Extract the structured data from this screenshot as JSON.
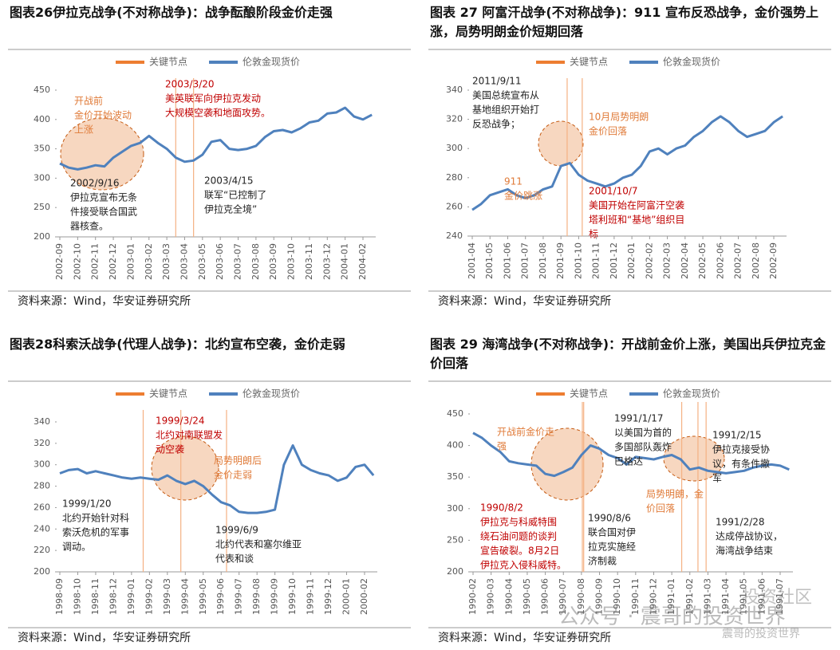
{
  "chart_data": [
    {
      "type": "line",
      "title": "图表26伊拉克战争(不对称战争)：战争酝酿阶段金价走强",
      "categories": [
        "2002-09",
        null,
        "2002-10",
        null,
        "2002-11",
        null,
        "2002-12",
        null,
        "2003-01",
        null,
        "2003-02",
        null,
        "2003-03",
        null,
        "2003-04",
        null,
        "2003-05",
        null,
        "2003-06",
        null,
        "2003-07",
        null,
        "2003-08",
        null,
        "2003-09",
        null,
        "2003-10",
        null,
        "2003-11",
        null,
        "2003-12",
        null,
        "2004-01",
        null,
        "2004-02",
        null
      ],
      "series": [
        {
          "name": "伦敦金现货价",
          "color": "#4f81bd",
          "values": [
            325,
            318,
            315,
            318,
            322,
            320,
            335,
            345,
            355,
            360,
            372,
            360,
            350,
            335,
            328,
            330,
            340,
            362,
            365,
            350,
            348,
            350,
            355,
            370,
            380,
            382,
            378,
            385,
            395,
            398,
            410,
            412,
            420,
            405,
            400,
            408
          ]
        }
      ],
      "key_nodes": {
        "name": "关键节点",
        "color": "#ed7d31",
        "x": [
          13,
          15
        ]
      },
      "ylim": [
        200,
        450
      ],
      "yticks": [
        200,
        250,
        300,
        350,
        400,
        450
      ],
      "annotations": [
        {
          "lines": [
            "开战前",
            "金价开始波动",
            "上涨"
          ],
          "color": "#e07b39"
        },
        {
          "lines": [
            "2003/3/20",
            "美英联军向伊拉克发动",
            "大规模空袭和地面攻势。"
          ],
          "color": "#c00000"
        },
        {
          "lines": [
            "2002/9/16",
            "伊拉克宣布无条",
            "件接受联合国武",
            "器核查。"
          ],
          "color": "#222222"
        },
        {
          "lines": [
            "2003/4/15",
            "联军“已控制了",
            "伊拉克全境”"
          ],
          "color": "#222222"
        }
      ],
      "source": "资料来源：Wind，华安证券研究所"
    },
    {
      "type": "line",
      "title": "图表 27 阿富汗战争(不对称战争)：911 宣布反恐战争，金价强势上涨，局势明朗金价短期回落",
      "categories": [
        "2001-04",
        null,
        "2001-05",
        null,
        "2001-06",
        null,
        "2001-07",
        null,
        "2001-08",
        null,
        "2001-09",
        null,
        "2001-10",
        null,
        "2001-11",
        null,
        "2001-12",
        null,
        "2002-01",
        null,
        "2002-02",
        null,
        "2002-03",
        null,
        "2002-04",
        null,
        "2002-05",
        null,
        "2002-06",
        null,
        "2002-07",
        null,
        "2002-08",
        null,
        "2002-09",
        null
      ],
      "series": [
        {
          "name": "伦敦金现货价",
          "color": "#4f81bd",
          "values": [
            258,
            262,
            268,
            270,
            272,
            268,
            266,
            268,
            272,
            274,
            288,
            290,
            282,
            278,
            276,
            274,
            276,
            280,
            282,
            288,
            298,
            300,
            296,
            300,
            302,
            308,
            312,
            318,
            322,
            318,
            312,
            308,
            310,
            312,
            318,
            322
          ]
        }
      ],
      "key_nodes": {
        "name": "关键节点",
        "color": "#ed7d31",
        "x": [
          10.7,
          12.4
        ]
      },
      "ylim": [
        240,
        340
      ],
      "yticks": [
        240,
        260,
        280,
        300,
        320,
        340
      ],
      "annotations": [
        {
          "lines": [
            "2011/9/11",
            "美国总统宣布从",
            "基地组织开始打",
            "反恐战争；"
          ],
          "color": "#222222"
        },
        {
          "lines": [
            "10月局势明朗",
            "金价回落"
          ],
          "color": "#e07b39"
        },
        {
          "lines": [
            "911",
            "金价跳涨"
          ],
          "color": "#e07b39"
        },
        {
          "lines": [
            "2001/10/7",
            "美国开始在阿富汗空袭",
            "塔利班和“基地”组织目",
            "标"
          ],
          "color": "#c00000"
        }
      ],
      "source": "资料来源：Wind，华安证券研究所"
    },
    {
      "type": "line",
      "title": "图表28科索沃战争(代理人战争)：北约宣布空袭，金价走弱",
      "categories": [
        "1998-09",
        null,
        "1998-10",
        null,
        "1998-11",
        null,
        "1998-12",
        null,
        "1999-01",
        null,
        "1999-02",
        null,
        "1999-03",
        null,
        "1999-04",
        null,
        "1999-05",
        null,
        "1999-06",
        null,
        "1999-07",
        null,
        "1999-08",
        null,
        "1999-09",
        null,
        "1999-10",
        null,
        "1999-11",
        null,
        "1999-12",
        null,
        "2000-01",
        null,
        "2000-02",
        null
      ],
      "series": [
        {
          "name": "伦敦金现货价",
          "color": "#4f81bd",
          "values": [
            292,
            295,
            296,
            292,
            294,
            292,
            290,
            288,
            287,
            288,
            287,
            286,
            290,
            285,
            282,
            285,
            280,
            272,
            265,
            262,
            256,
            255,
            255,
            256,
            258,
            300,
            318,
            300,
            295,
            292,
            290,
            285,
            288,
            298,
            300,
            290
          ]
        }
      ],
      "key_nodes": {
        "name": "关键节点",
        "color": "#ed7d31",
        "x": [
          9.3,
          13.5,
          18.6
        ]
      },
      "ylim": [
        200,
        340
      ],
      "yticks": [
        200,
        220,
        240,
        260,
        280,
        300,
        320,
        340
      ],
      "annotations": [
        {
          "lines": [
            "1999/3/24",
            "北约对南联盟发",
            "动空袭"
          ],
          "color": "#c00000"
        },
        {
          "lines": [
            "局势明朗后",
            "金价走弱"
          ],
          "color": "#e07b39"
        },
        {
          "lines": [
            "1999/1/20",
            "北约开始针对科",
            "索沃危机的军事",
            "调动。"
          ],
          "color": "#222222"
        },
        {
          "lines": [
            "1999/6/9",
            "北约代表和塞尔维亚",
            "代表和谈"
          ],
          "color": "#222222"
        }
      ],
      "source": "资料来源：Wind，华安证券研究所"
    },
    {
      "type": "line",
      "title": "图表 29 海湾战争(不对称战争)：开战前金价上涨，美国出兵伊拉克金价回落",
      "categories": [
        "1990-02",
        null,
        "1990-03",
        null,
        "1990-04",
        null,
        "1990-05",
        null,
        "1990-06",
        null,
        "1990-07",
        null,
        "1990-08",
        null,
        "1990-09",
        null,
        "1990-10",
        null,
        "1990-11",
        null,
        "1990-12",
        null,
        "1991-01",
        null,
        "1991-02",
        null,
        "1991-03",
        null,
        "1991-04",
        null,
        "1991-05",
        null,
        "1991-06",
        null,
        "1991-07",
        null
      ],
      "series": [
        {
          "name": "伦敦金现货价",
          "color": "#4f81bd",
          "values": [
            420,
            412,
            400,
            390,
            375,
            372,
            370,
            368,
            355,
            352,
            358,
            365,
            385,
            400,
            395,
            385,
            380,
            370,
            382,
            380,
            378,
            382,
            385,
            378,
            362,
            365,
            360,
            358,
            356,
            358,
            360,
            365,
            368,
            370,
            368,
            362
          ]
        }
      ],
      "key_nodes": {
        "name": "关键节点",
        "color": "#ed7d31",
        "x": [
          12.1,
          12.25,
          23.1,
          24.9,
          25.8
        ]
      },
      "ylim": [
        200,
        450
      ],
      "yticks": [
        200,
        250,
        300,
        350,
        400,
        450
      ],
      "annotations": [
        {
          "lines": [
            "开战前金价走",
            "强"
          ],
          "color": "#e07b39"
        },
        {
          "lines": [
            "1991/1/17",
            "以美国为首的",
            "多国部队轰炸",
            "巴格达"
          ],
          "color": "#222222"
        },
        {
          "lines": [
            "1991/2/15",
            "伊拉克接受协",
            "议，有条件撤",
            "军"
          ],
          "color": "#222222"
        },
        {
          "lines": [
            "局势明朗，金",
            "价回落"
          ],
          "color": "#e07b39"
        },
        {
          "lines": [
            "1990/8/2",
            "伊拉克与科威特围",
            "绕石油问题的谈判",
            "宣告破裂。8月2日",
            "伊拉克入侵科威特。"
          ],
          "color": "#c00000"
        },
        {
          "lines": [
            "1990/8/6",
            "联合国对伊",
            "拉克实施经",
            "济制裁"
          ],
          "color": "#222222"
        },
        {
          "lines": [
            "1991/2/28",
            "达成停战协议，",
            "海湾战争结束"
          ],
          "color": "#222222"
        }
      ],
      "source": "资料来源：Wind，华安证券研究所"
    }
  ],
  "watermark": [
    "投资社区",
    "公众号 · 震哥的投资世界",
    "震哥的投资世界"
  ]
}
